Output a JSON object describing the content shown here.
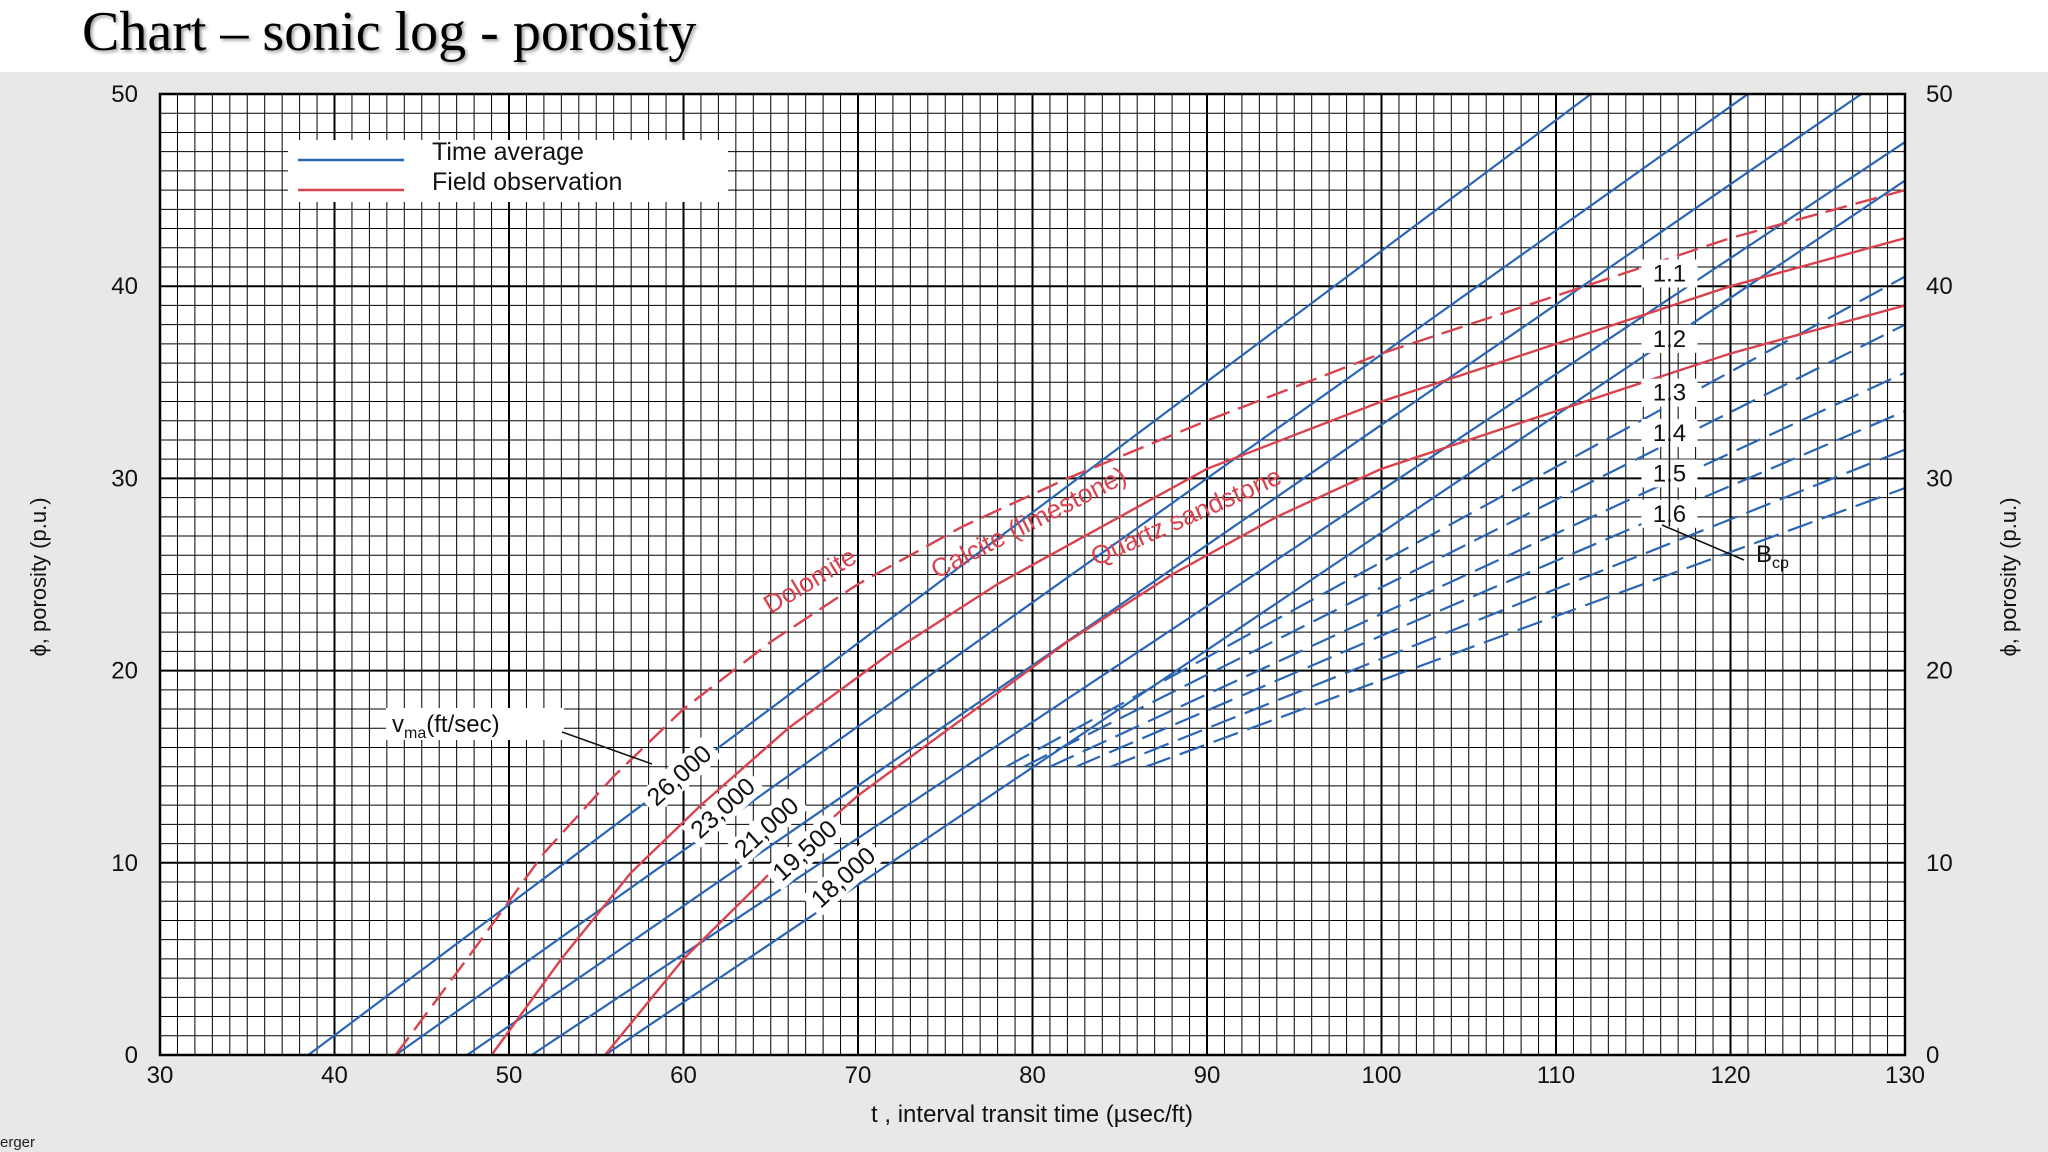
{
  "slide_title": "Chart – sonic log - porosity",
  "footer_note": "erger",
  "colors": {
    "time_average": "#2a66b4",
    "field_observation": "#d8434f",
    "grid": "#000000",
    "panel_bg": "#e8e8e8"
  },
  "chart_data": {
    "type": "line",
    "xlabel": "t , interval transit time (µsec/ft)",
    "ylabel": "ϕ, porosity (p.u.)",
    "xlim": [
      30,
      130
    ],
    "ylim": [
      0,
      50
    ],
    "x_ticks": [
      "30",
      "40",
      "50",
      "60",
      "70",
      "80",
      "90",
      "100",
      "110",
      "120",
      "130"
    ],
    "y_ticks": [
      "0",
      "10",
      "20",
      "30",
      "40",
      "50"
    ],
    "grid": true,
    "legend_position": "top-left",
    "legend": [
      {
        "label": "Time average",
        "color": "#2a66b4"
      },
      {
        "label": "Field observation",
        "color": "#d8434f"
      }
    ],
    "time_average_lines": {
      "vma_label": "v",
      "vma_sub": "ma",
      "vma_unit": "(ft/sec)",
      "series": [
        {
          "label": "26,000",
          "zero_x": 38.5,
          "x": [
            38.5,
            112
          ],
          "y": [
            0,
            50
          ]
        },
        {
          "label": "23,000",
          "zero_x": 43.5,
          "x": [
            43.5,
            121
          ],
          "y": [
            0,
            50
          ]
        },
        {
          "label": "21,000",
          "zero_x": 47.6,
          "x": [
            47.6,
            127.5
          ],
          "y": [
            0,
            50
          ]
        },
        {
          "label": "19,500",
          "zero_x": 51.3,
          "x": [
            51.3,
            130
          ],
          "y": [
            0,
            47.5
          ]
        },
        {
          "label": "18,000",
          "zero_x": 55.5,
          "x": [
            55.5,
            130
          ],
          "y": [
            0,
            45.5
          ]
        }
      ]
    },
    "compaction_lines": {
      "label": "B",
      "label_sub": "cp",
      "values": [
        "1.1",
        "1.2",
        "1.3",
        "1.4",
        "1.5",
        "1.6"
      ],
      "series": [
        {
          "label": "1.1",
          "x": [
            78.5,
            130
          ],
          "y": [
            15,
            40.5
          ]
        },
        {
          "label": "1.2",
          "x": [
            79.5,
            130
          ],
          "y": [
            15,
            38
          ]
        },
        {
          "label": "1.3",
          "x": [
            81,
            130
          ],
          "y": [
            15,
            35.5
          ]
        },
        {
          "label": "1.4",
          "x": [
            82.5,
            130
          ],
          "y": [
            15,
            33.5
          ]
        },
        {
          "label": "1.5",
          "x": [
            84.5,
            130
          ],
          "y": [
            15,
            31.5
          ]
        },
        {
          "label": "1.6",
          "x": [
            86.5,
            130
          ],
          "y": [
            15,
            29.5
          ]
        }
      ]
    },
    "field_observation_curves": [
      {
        "label": "Dolomite",
        "dashed": true,
        "x": [
          43.5,
          48,
          52,
          56,
          60,
          65,
          70,
          76,
          82,
          90,
          100,
          110,
          120,
          130
        ],
        "y": [
          0,
          5.5,
          10.5,
          14.5,
          18,
          21.5,
          24.5,
          27.5,
          30,
          33,
          36.5,
          39.5,
          42.5,
          45
        ]
      },
      {
        "label": "Calcite (limestone)",
        "dashed": false,
        "x": [
          49,
          53,
          57,
          61,
          66,
          72,
          78,
          84,
          90,
          100,
          110,
          120,
          130
        ],
        "y": [
          0,
          5,
          9.5,
          13,
          17,
          21,
          24.5,
          27.5,
          30.5,
          34,
          37,
          40,
          42.5
        ]
      },
      {
        "label": "Quartz sandstone",
        "dashed": false,
        "x": [
          55.5,
          60,
          65,
          70,
          76,
          82,
          88,
          94,
          100,
          110,
          120,
          130
        ],
        "y": [
          0,
          5,
          9.5,
          13.5,
          17.5,
          21.5,
          25,
          28,
          30.5,
          33.5,
          36.5,
          39
        ]
      }
    ]
  }
}
